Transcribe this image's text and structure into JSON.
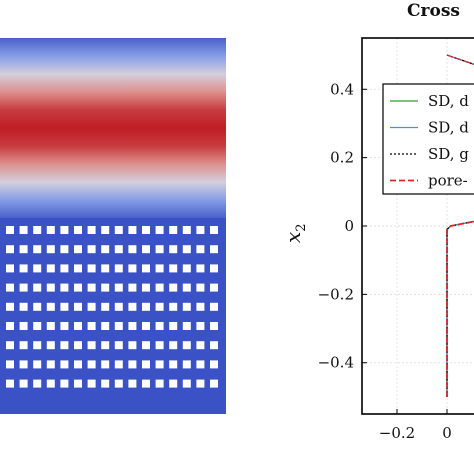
{
  "chart_data": [
    {
      "type": "heatmap",
      "description_visible": "",
      "colormap": [
        "#3a52c6",
        "#9fb6f0",
        "#f0dcd2",
        "#c01e25"
      ],
      "band_levels": [
        0.05,
        0.25,
        0.55,
        0.8,
        0.95,
        1.0,
        0.95,
        0.8,
        0.55,
        0.25,
        0.05
      ],
      "pore_grid": {
        "columns": 16,
        "rows": 9
      },
      "background_color": "#3a52c6",
      "pore_color": "#ffffff"
    },
    {
      "type": "line",
      "title": "Cross",
      "xlabel": "",
      "ylabel_main": "x",
      "ylabel_sub": "2",
      "xlim": [
        -0.3,
        0.12
      ],
      "ylim": [
        -0.55,
        0.55
      ],
      "xticks": [
        -0.2,
        0
      ],
      "xtick_labels": [
        "−0.2",
        "0"
      ],
      "yticks": [
        0.4,
        0.2,
        0,
        -0.2,
        -0.4
      ],
      "ytick_labels": [
        "0.4",
        "0.2",
        "0",
        "−0.2",
        "−0.4"
      ],
      "grid": true,
      "legend_position": "top-right",
      "series": [
        {
          "name": "SD, d",
          "color": "#2ca02c",
          "style": "solid",
          "x": [
            0.0,
            0.0,
            0.015,
            0.12
          ],
          "y": [
            -0.5,
            -0.01,
            0.0,
            0.015
          ]
        },
        {
          "name": "SD, d",
          "color": "#4a90d9",
          "style": "solid",
          "x": [
            0.0,
            0.0,
            0.015,
            0.12
          ],
          "y": [
            -0.5,
            -0.01,
            0.0,
            0.015
          ]
        },
        {
          "name": "SD, g",
          "color": "#000000",
          "style": "dotted",
          "x": [
            0.0,
            0.0,
            0.015,
            0.12
          ],
          "y": [
            -0.5,
            -0.01,
            0.0,
            0.015
          ]
        },
        {
          "name": "pore-",
          "color": "#d62728",
          "style": "dashed",
          "x": [
            0.0,
            0.0,
            0.015,
            0.12
          ],
          "y": [
            -0.5,
            -0.01,
            0.0,
            0.015
          ]
        }
      ],
      "top_segment": {
        "x": [
          0.0,
          0.12
        ],
        "y": [
          0.5,
          0.47
        ]
      }
    }
  ]
}
